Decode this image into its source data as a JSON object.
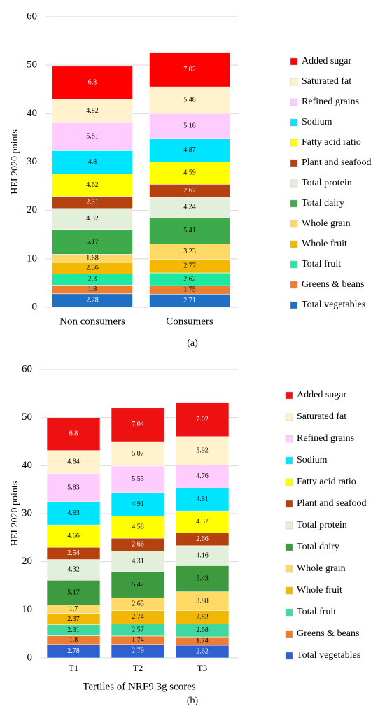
{
  "chart_data": [
    {
      "type": "bar",
      "stacked": true,
      "grid": true,
      "caption": "(a)",
      "ylabel": "HEI 2020 points",
      "ylim": [
        0,
        60
      ],
      "yticks": [
        0,
        10,
        20,
        30,
        40,
        50,
        60
      ],
      "categories": [
        "Non consumers",
        "Consumers"
      ],
      "series": [
        {
          "name": "Total vegetables",
          "color": "#1f6fc5",
          "values": [
            2.78,
            2.71
          ]
        },
        {
          "name": "Greens & beans",
          "color": "#ed7d31",
          "values": [
            1.8,
            1.75
          ]
        },
        {
          "name": "Total fruit",
          "color": "#1de9a0",
          "values": [
            2.3,
            2.62
          ]
        },
        {
          "name": "Whole fruit",
          "color": "#f5b800",
          "values": [
            2.36,
            2.77
          ]
        },
        {
          "name": "Whole grain",
          "color": "#ffd966",
          "values": [
            1.68,
            3.23
          ]
        },
        {
          "name": "Total dairy",
          "color": "#3daa4b",
          "values": [
            5.17,
            5.41
          ]
        },
        {
          "name": "Total protein",
          "color": "#e2efda",
          "values": [
            4.32,
            4.24
          ]
        },
        {
          "name": "Plant and seafood",
          "color": "#b5410f",
          "values": [
            2.51,
            2.67
          ]
        },
        {
          "name": "Fatty acid ratio",
          "color": "#ffff00",
          "values": [
            4.62,
            4.59
          ]
        },
        {
          "name": "Sodium",
          "color": "#00e5ff",
          "values": [
            4.8,
            4.87
          ]
        },
        {
          "name": "Refined grains",
          "color": "#ffccff",
          "values": [
            5.81,
            5.18
          ]
        },
        {
          "name": "Saturated fat",
          "color": "#fff2cc",
          "values": [
            4.82,
            5.48
          ]
        },
        {
          "name": "Added sugar",
          "color": "#ff0000",
          "values": [
            6.8,
            7.02
          ]
        }
      ]
    },
    {
      "type": "bar",
      "stacked": true,
      "grid": true,
      "caption": "(b)",
      "ylabel": "HEI 2020 points",
      "xlabel": "Tertiles of NRF9.3g scores",
      "ylim": [
        0,
        60
      ],
      "yticks": [
        0,
        10,
        20,
        30,
        40,
        50,
        60
      ],
      "categories": [
        "T1",
        "T2",
        "T3"
      ],
      "series": [
        {
          "name": "Total vegetables",
          "color": "#2f5fd0",
          "values": [
            2.78,
            2.79,
            2.62
          ]
        },
        {
          "name": "Greens & beans",
          "color": "#ed7d31",
          "values": [
            1.8,
            1.74,
            1.74
          ]
        },
        {
          "name": "Total fruit",
          "color": "#3fd9a0",
          "values": [
            2.31,
            2.57,
            2.68
          ]
        },
        {
          "name": "Whole fruit",
          "color": "#f2b705",
          "values": [
            2.37,
            2.74,
            2.82
          ]
        },
        {
          "name": "Whole grain",
          "color": "#ffd966",
          "values": [
            1.7,
            2.65,
            3.88
          ]
        },
        {
          "name": "Total dairy",
          "color": "#3d9a3e",
          "values": [
            5.17,
            5.42,
            5.43
          ]
        },
        {
          "name": "Total protein",
          "color": "#e2efda",
          "values": [
            4.32,
            4.31,
            4.16
          ]
        },
        {
          "name": "Plant and seafood",
          "color": "#b5410f",
          "values": [
            2.54,
            2.66,
            2.66
          ]
        },
        {
          "name": "Fatty acid ratio",
          "color": "#ffff00",
          "values": [
            4.66,
            4.58,
            4.57
          ]
        },
        {
          "name": "Sodium",
          "color": "#00e5ff",
          "values": [
            4.83,
            4.91,
            4.81
          ]
        },
        {
          "name": "Refined grains",
          "color": "#ffccff",
          "values": [
            5.83,
            5.55,
            4.76
          ]
        },
        {
          "name": "Saturated fat",
          "color": "#fff2cc",
          "values": [
            4.84,
            5.07,
            5.92
          ]
        },
        {
          "name": "Added sugar",
          "color": "#ee1111",
          "values": [
            6.8,
            7.04,
            7.02
          ]
        }
      ]
    }
  ]
}
